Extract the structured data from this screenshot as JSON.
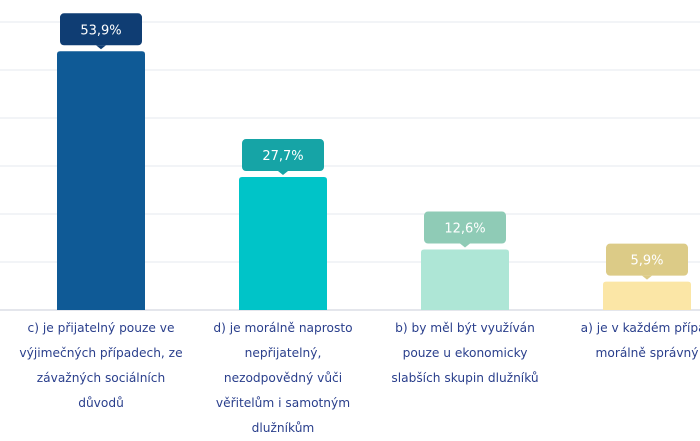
{
  "chart_data": {
    "type": "bar",
    "title": "",
    "xlabel": "",
    "ylabel": "",
    "ylim": [
      0,
      60
    ],
    "grid": true,
    "categories": [
      "c) je přijatelný pouze ve\nvýjimečných případech, ze\nzávažných sociálních\ndůvodů",
      "d) je morálně naprosto\nnepřijatelný,\nnezodpovědný vůči\nvěřitelům i samotným\ndlužníkům",
      "b) by měl být využíván\npouze u ekonomicky\nslabších skupin dlužníků",
      "a) je v každém případ\nmorálně správný"
    ],
    "values": [
      53.9,
      27.7,
      12.6,
      5.9
    ],
    "value_labels": [
      "53,9%",
      "27,7%",
      "12,6%",
      "5,9%"
    ],
    "colors": [
      "#0f5a96",
      "#00c4c8",
      "#aee6d6",
      "#fbe6a6"
    ],
    "label_colors": [
      "#0f3d73",
      "#16a4a6",
      "#8fcbb6",
      "#dccb87"
    ],
    "label_text_color": "#ffffff",
    "grid_color": "#e6e9ef",
    "axis_color": "#c9ced8",
    "category_text_color": "#2a3f8c"
  }
}
